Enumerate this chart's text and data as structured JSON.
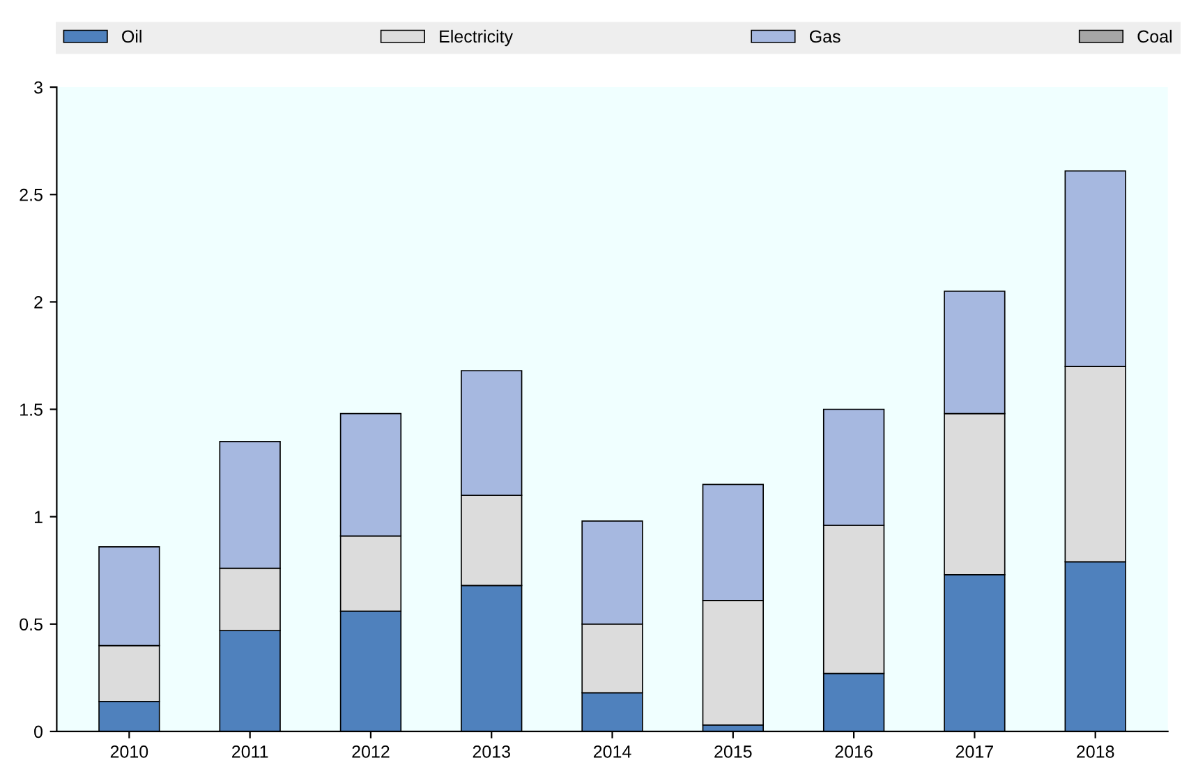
{
  "chart_data": {
    "type": "bar",
    "stacked": true,
    "categories": [
      "2010",
      "2011",
      "2012",
      "2013",
      "2014",
      "2015",
      "2016",
      "2017",
      "2018"
    ],
    "series": [
      {
        "name": "Oil",
        "color": "#4f81bd",
        "values": [
          0.14,
          0.47,
          0.56,
          0.68,
          0.18,
          0.03,
          0.27,
          0.73,
          0.79
        ]
      },
      {
        "name": "Electricity",
        "color": "#dcdcdc",
        "values": [
          0.26,
          0.29,
          0.35,
          0.42,
          0.32,
          0.58,
          0.69,
          0.75,
          0.91
        ]
      },
      {
        "name": "Gas",
        "color": "#a6b8e0",
        "values": [
          0.46,
          0.59,
          0.57,
          0.58,
          0.48,
          0.54,
          0.54,
          0.57,
          0.91
        ]
      },
      {
        "name": "Coal",
        "color": "#a6a6a6",
        "values": [
          null,
          null,
          null,
          null,
          null,
          null,
          null,
          null,
          null
        ]
      }
    ],
    "ylim": [
      0,
      3
    ],
    "yticks": [
      0,
      0.5,
      1,
      1.5,
      2,
      2.5,
      3
    ],
    "grid": false,
    "legend": "top"
  }
}
